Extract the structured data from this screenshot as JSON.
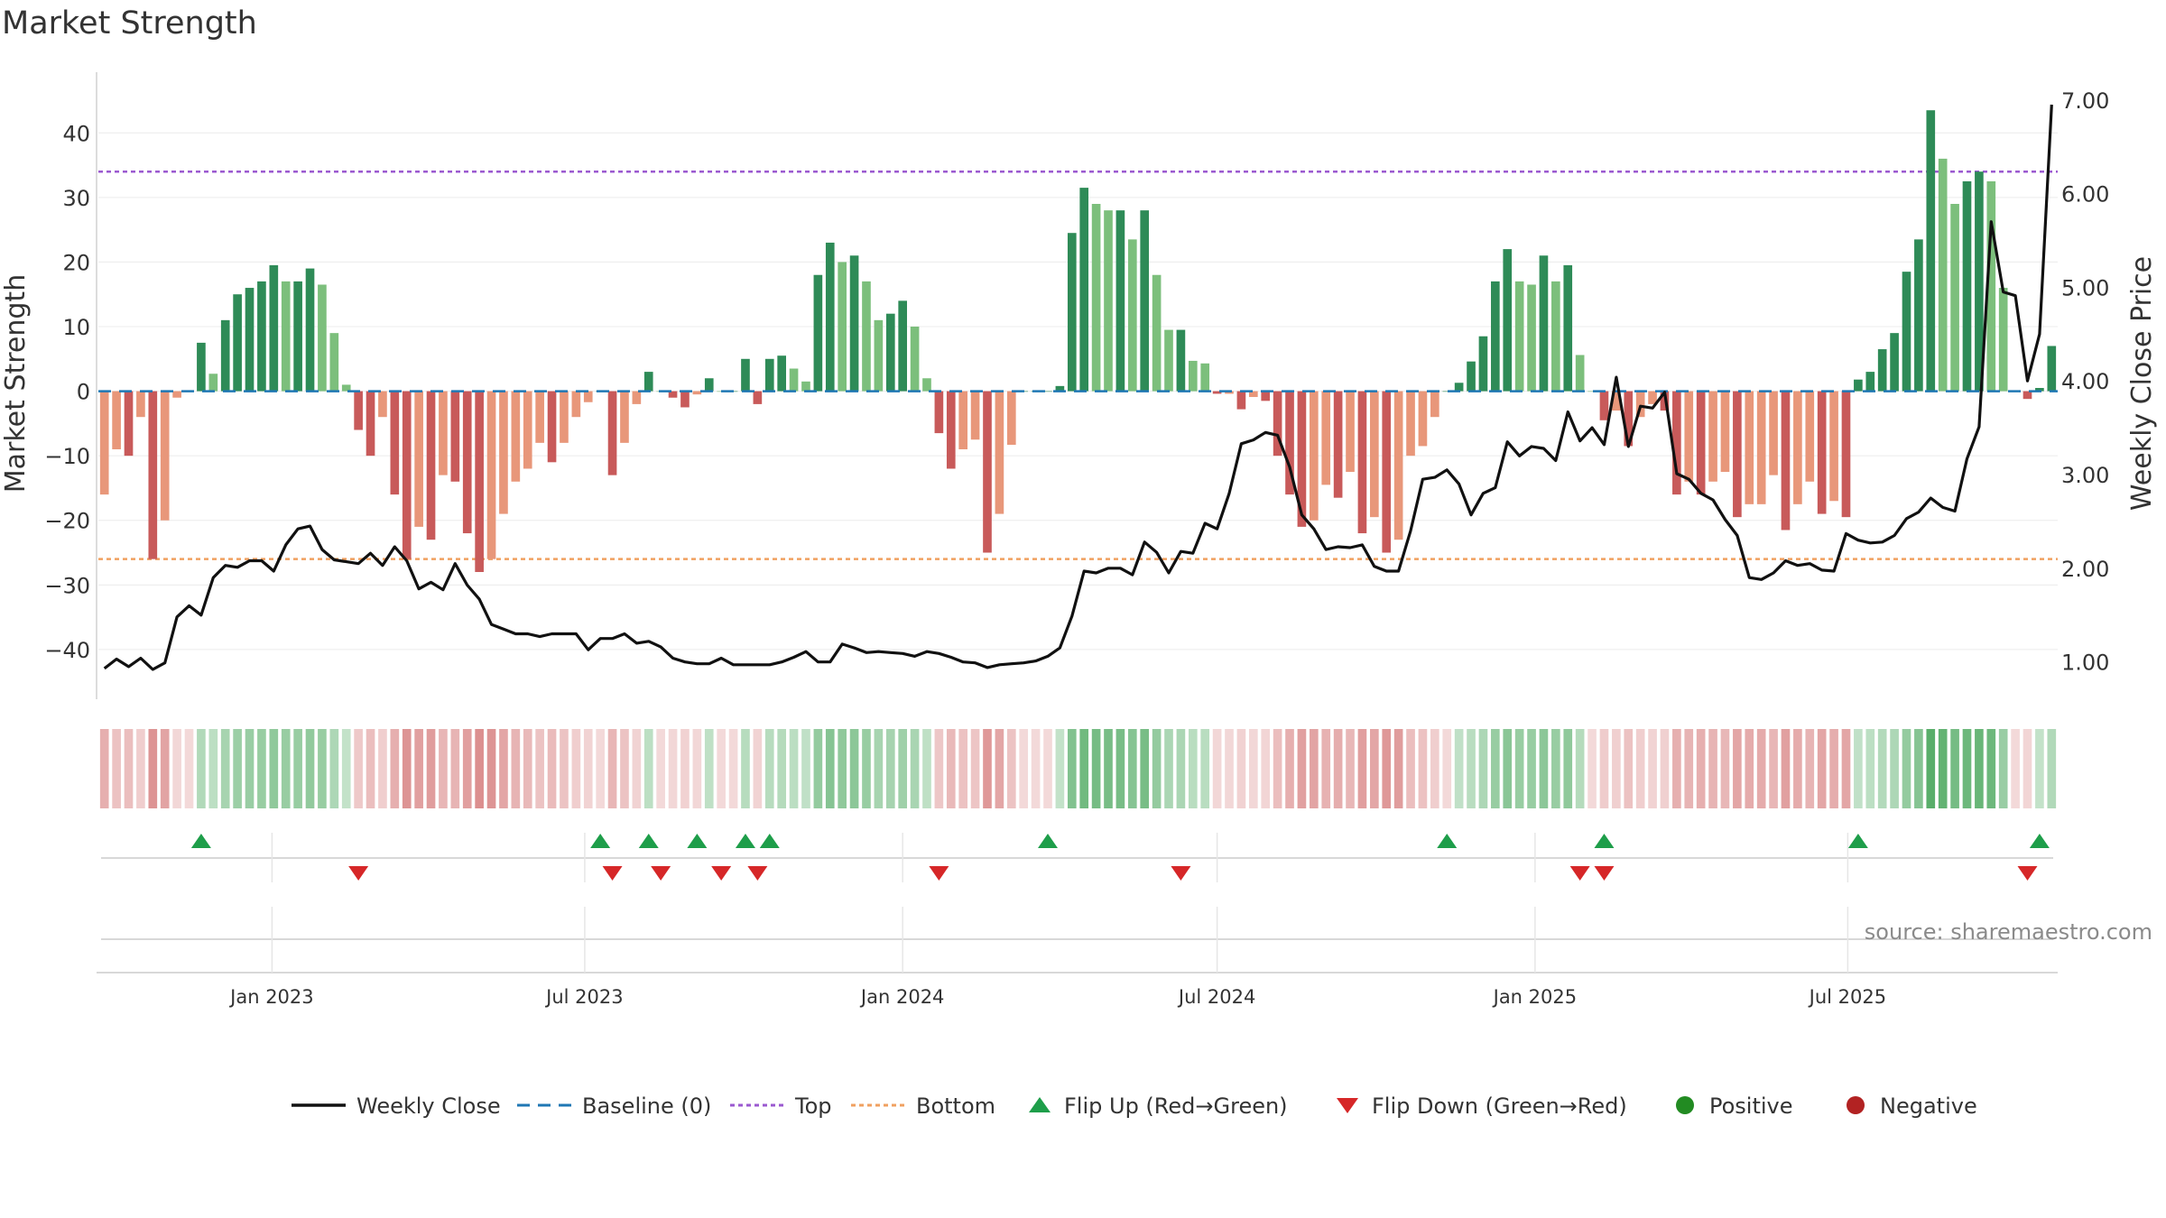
{
  "title": "Market Strength",
  "source": "source: sharemaestro.com",
  "colors": {
    "pos_dark": "#2e8b57",
    "pos_light": "#7cbf7c",
    "neg_dark": "#c85a5a",
    "neg_light": "#e8977a",
    "close_line": "#111111",
    "baseline": "#1f77b4",
    "top_line": "#9b59d0",
    "bottom_line": "#f0a060",
    "flip_up": "#1e9e4a",
    "flip_down": "#d62728",
    "positive_dot": "#228b22",
    "negative_dot": "#b22222"
  },
  "chart_data": {
    "type": "bar",
    "x_start": "2022-09-26",
    "x_step_days": 7,
    "left_axis": {
      "label": "Market Strength",
      "ylim": [
        -47,
        48
      ],
      "ticks": [
        40,
        30,
        20,
        10,
        0,
        -10,
        -20,
        -30,
        -40
      ]
    },
    "right_axis": {
      "label": "Weekly Close Price",
      "ylim": [
        0.65,
        7.2
      ],
      "ticks": [
        "7.00",
        "6.00",
        "5.00",
        "4.00",
        "3.00",
        "2.00",
        "1.00"
      ]
    },
    "x_ticks": [
      {
        "date": "2023-01-01",
        "label": "Jan 2023"
      },
      {
        "date": "2023-07-01",
        "label": "Jul 2023"
      },
      {
        "date": "2024-01-01",
        "label": "Jan 2024"
      },
      {
        "date": "2024-07-01",
        "label": "Jul 2024"
      },
      {
        "date": "2025-01-01",
        "label": "Jan 2025"
      },
      {
        "date": "2025-07-01",
        "label": "Jul 2025"
      }
    ],
    "reference_lines": {
      "baseline": 0,
      "top": 34,
      "bottom": -26
    },
    "strength": [
      -16,
      -9,
      -10,
      -4,
      -26,
      -20,
      -1,
      0,
      7.5,
      2.7,
      11,
      15,
      16,
      17,
      19.5,
      17,
      17,
      19,
      16.5,
      9,
      1,
      -6,
      -10,
      -4,
      -16,
      -26,
      -21,
      -23,
      -13,
      -14,
      -22,
      -28,
      -26,
      -19,
      -14,
      -12,
      -8,
      -11,
      -8,
      -4,
      -1.7,
      0,
      -13,
      -8,
      -2,
      3,
      0,
      -1,
      -2.5,
      -0.5,
      2,
      0,
      0,
      5,
      -2,
      5,
      5.5,
      3.5,
      1.5,
      18,
      23,
      20,
      21,
      17,
      11,
      12,
      14,
      10,
      2,
      -6.5,
      -12,
      -9,
      -7.5,
      -25,
      -19,
      -8.3,
      0,
      0,
      0,
      0.8,
      24.5,
      31.5,
      29,
      28,
      28,
      23.5,
      28,
      18,
      9.5,
      9.5,
      4.7,
      4.3,
      -0.4,
      -0.4,
      -2.8,
      -0.9,
      -1.5,
      -10,
      -16,
      -21,
      -20,
      -14.5,
      -16.5,
      -12.5,
      -22,
      -19.5,
      -25,
      -23,
      -10,
      -8.5,
      -4,
      0,
      1.3,
      4.6,
      8.5,
      17,
      22,
      17,
      16.5,
      21,
      17,
      19.5,
      5.6,
      0,
      -4.5,
      -3,
      -8.5,
      -4,
      -2,
      -3,
      -16,
      -14,
      -16,
      -14,
      -12.5,
      -19.5,
      -17.5,
      -17.5,
      -13,
      -21.5,
      -17.5,
      -14,
      -19,
      -17,
      -19.5,
      1.8,
      3,
      6.5,
      9,
      18.5,
      23.5,
      43.5,
      36,
      29,
      32.5,
      34,
      32.5,
      16,
      0,
      -1.2,
      0.5,
      7
    ],
    "close": [
      0.93,
      1.03,
      0.95,
      1.04,
      0.92,
      0.99,
      1.48,
      1.6,
      1.5,
      1.9,
      2.03,
      2.01,
      2.08,
      2.08,
      1.97,
      2.25,
      2.42,
      2.45,
      2.2,
      2.09,
      2.07,
      2.05,
      2.16,
      2.03,
      2.23,
      2.08,
      1.78,
      1.85,
      1.77,
      2.05,
      1.82,
      1.67,
      1.4,
      1.35,
      1.3,
      1.3,
      1.27,
      1.3,
      1.3,
      1.3,
      1.13,
      1.25,
      1.25,
      1.3,
      1.2,
      1.22,
      1.16,
      1.04,
      1,
      0.98,
      0.98,
      1.04,
      0.97,
      0.97,
      0.97,
      0.97,
      1,
      1.05,
      1.11,
      1,
      1,
      1.19,
      1.15,
      1.1,
      1.11,
      1.1,
      1.09,
      1.06,
      1.11,
      1.09,
      1.05,
      1,
      0.99,
      0.94,
      0.97,
      0.98,
      0.99,
      1.01,
      1.06,
      1.15,
      1.49,
      1.97,
      1.95,
      2,
      2,
      1.93,
      2.28,
      2.17,
      1.95,
      2.18,
      2.16,
      2.48,
      2.42,
      2.8,
      3.33,
      3.37,
      3.45,
      3.42,
      3.08,
      2.57,
      2.42,
      2.2,
      2.23,
      2.22,
      2.25,
      2.02,
      1.97,
      1.97,
      2.4,
      2.95,
      2.97,
      3.05,
      2.9,
      2.57,
      2.8,
      2.86,
      3.35,
      3.2,
      3.3,
      3.28,
      3.15,
      3.67,
      3.36,
      3.5,
      3.32,
      4.04,
      3.3,
      3.73,
      3.71,
      3.88,
      3.01,
      2.95,
      2.8,
      2.73,
      2.52,
      2.35,
      1.9,
      1.88,
      1.95,
      2.08,
      2.03,
      2.05,
      1.98,
      1.97,
      2.37,
      2.3,
      2.27,
      2.28,
      2.35,
      2.53,
      2.6,
      2.75,
      2.65,
      2.61,
      3.17,
      3.51,
      5.7,
      4.95,
      4.91,
      4,
      4.5,
      6.95
    ],
    "flips_up_index": [
      8,
      41,
      45,
      49,
      53,
      55,
      78,
      111,
      124,
      145,
      160
    ],
    "flips_down_index": [
      21,
      42,
      46,
      51,
      54,
      69,
      89,
      122,
      124,
      159
    ]
  },
  "legend": [
    {
      "label": "Weekly Close",
      "kind": "line"
    },
    {
      "label": "Baseline (0)",
      "kind": "dashed-blue"
    },
    {
      "label": "Top",
      "kind": "dotted-purple"
    },
    {
      "label": "Bottom",
      "kind": "dotted-orange"
    },
    {
      "label": "Flip Up (Red→Green)",
      "kind": "triangle-up"
    },
    {
      "label": "Flip Down (Green→Red)",
      "kind": "triangle-down"
    },
    {
      "label": "Positive",
      "kind": "dot-green"
    },
    {
      "label": "Negative",
      "kind": "dot-red"
    }
  ]
}
